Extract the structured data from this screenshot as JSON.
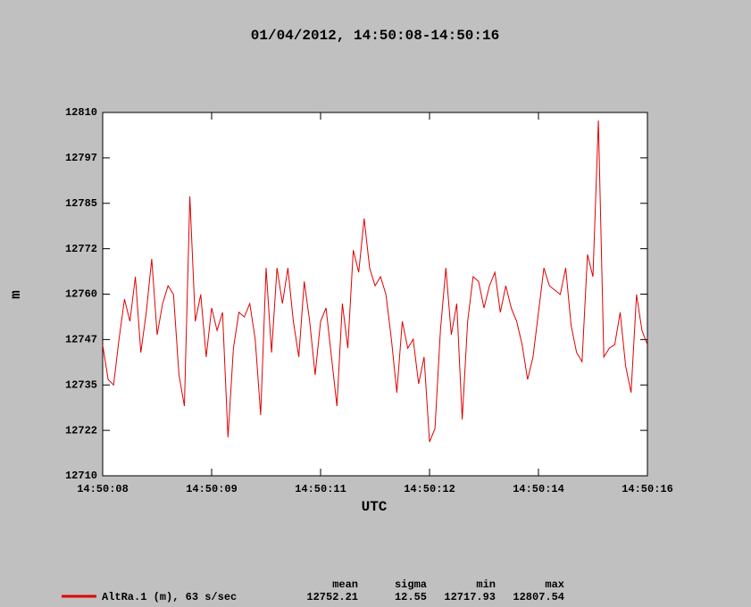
{
  "chart_data": {
    "type": "line",
    "title": "01/04/2012, 14:50:08-14:50:16",
    "x_label": "UTC",
    "y_label": "m",
    "xlim": [
      8,
      16
    ],
    "xticks": [
      {
        "value": 8,
        "label": "14:50:08"
      },
      {
        "value": 9.6,
        "label": "14:50:09"
      },
      {
        "value": 11.2,
        "label": "14:50:11"
      },
      {
        "value": 12.8,
        "label": "14:50:12"
      },
      {
        "value": 14.4,
        "label": "14:50:14"
      },
      {
        "value": 16,
        "label": "14:50:16"
      }
    ],
    "ylim": [
      12710,
      12810
    ],
    "yticks": [
      12710,
      {
        "value": 12722.5,
        "label": "12722"
      },
      12735,
      {
        "value": 12747.5,
        "label": "12747"
      },
      12760,
      {
        "value": 12772.5,
        "label": "12772"
      },
      12785,
      {
        "value": 12797.5,
        "label": "12797"
      },
      12810
    ],
    "x": [
      8,
      8.08,
      8.16,
      8.24,
      8.32,
      8.4,
      8.48,
      8.56,
      8.64,
      8.72,
      8.8,
      8.88,
      8.96,
      9.04,
      9.12,
      9.2,
      9.28,
      9.36,
      9.44,
      9.52,
      9.6,
      9.68,
      9.76,
      9.84,
      9.92,
      10,
      10.08,
      10.16,
      10.24,
      10.32,
      10.4,
      10.48,
      10.56,
      10.64,
      10.72,
      10.8,
      10.88,
      10.96,
      11.04,
      11.12,
      11.2,
      11.28,
      11.36,
      11.44,
      11.52,
      11.6,
      11.68,
      11.76,
      11.84,
      11.92,
      12,
      12.08,
      12.16,
      12.24,
      12.32,
      12.4,
      12.48,
      12.56,
      12.64,
      12.72,
      12.8,
      12.88,
      12.96,
      13.04,
      13.12,
      13.2,
      13.28,
      13.36,
      13.44,
      13.52,
      13.6,
      13.68,
      13.76,
      13.84,
      13.92,
      14,
      14.08,
      14.16,
      14.24,
      14.32,
      14.4,
      14.48,
      14.56,
      14.64,
      14.72,
      14.8,
      14.88,
      14.96,
      15.04,
      15.12,
      15.2,
      15.28,
      15.36,
      15.44,
      15.52,
      15.6,
      15.68,
      15.76,
      15.84,
      15.92,
      16
    ],
    "series": [
      {
        "name": "AltRa.1 (m), 63 s/sec",
        "color": "#e00000",
        "values": [
          12746,
          12736.5,
          12735,
          12747.6,
          12758.6,
          12752.5,
          12764.8,
          12743.9,
          12755,
          12769.7,
          12748.8,
          12757.4,
          12762.3,
          12759.9,
          12737.8,
          12729.2,
          12786.9,
          12752.5,
          12759.9,
          12742.7,
          12756.2,
          12750,
          12755,
          12720.6,
          12745.1,
          12755,
          12753.7,
          12757.4,
          12747.6,
          12726.7,
          12767.2,
          12743.9,
          12767.2,
          12757.4,
          12767.2,
          12752.5,
          12742.7,
          12763.5,
          12752.5,
          12737.8,
          12752.5,
          12756.2,
          12742.7,
          12729.2,
          12757.4,
          12745.1,
          12772.1,
          12766,
          12780.8,
          12767.2,
          12762.3,
          12764.8,
          12759.9,
          12747.6,
          12732.9,
          12752.5,
          12745.1,
          12747.6,
          12735.3,
          12742.7,
          12719.3,
          12723,
          12750,
          12767.2,
          12748.8,
          12757.4,
          12725.5,
          12752.5,
          12764.8,
          12763.5,
          12756.2,
          12762.3,
          12766,
          12755,
          12762.3,
          12756.2,
          12752.5,
          12746.1,
          12736.5,
          12742.7,
          12755,
          12767.2,
          12762.3,
          12761.1,
          12759.9,
          12767.2,
          12751.3,
          12743.9,
          12741.4,
          12770.9,
          12764.8,
          12807.8,
          12742.7,
          12745.1,
          12746.1,
          12755,
          12740.2,
          12732.9,
          12759.9,
          12750,
          12746.1
        ]
      }
    ],
    "stats": {
      "columns": [
        "mean",
        "sigma",
        "min",
        "max"
      ],
      "values": [
        "12752.21",
        "12.55",
        "12717.93",
        "12807.54"
      ]
    }
  }
}
